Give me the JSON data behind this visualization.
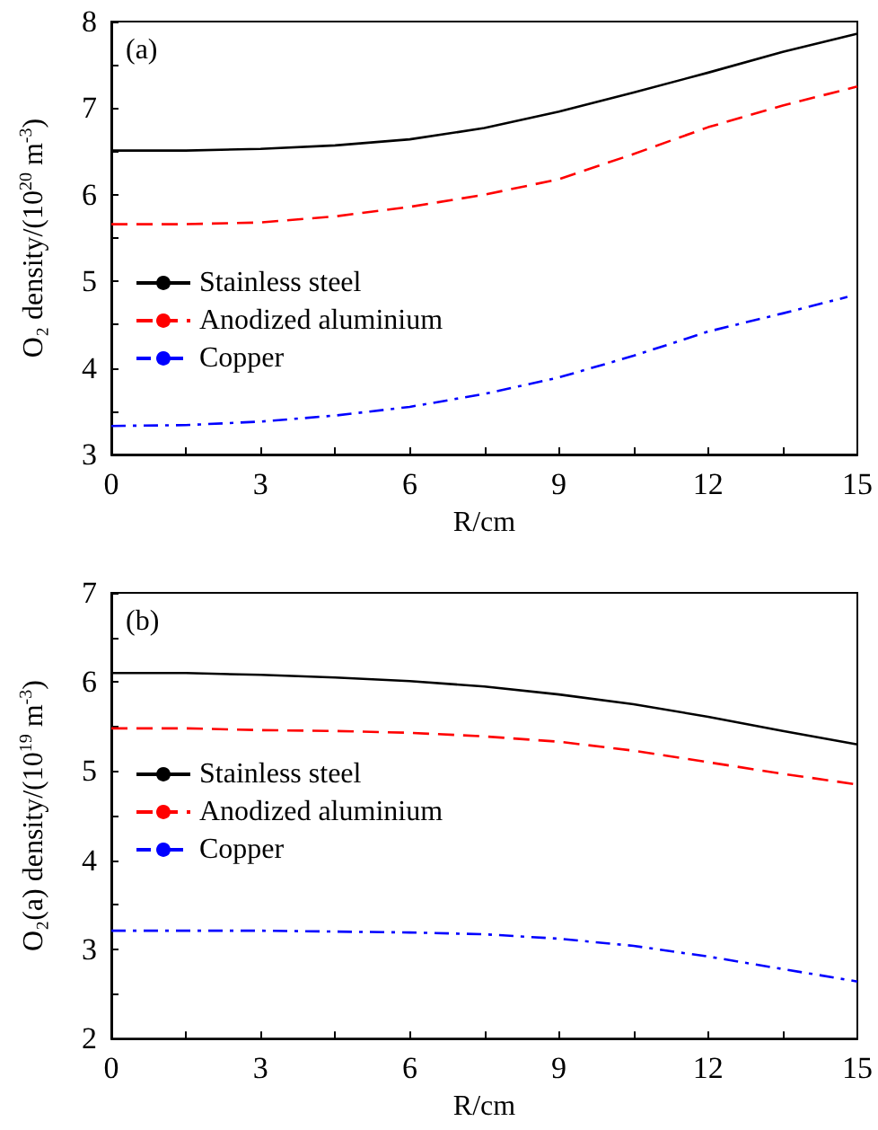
{
  "chart_data": [
    {
      "type": "line",
      "title": "(a)",
      "xlabel": "R/cm",
      "ylabel": "O₂ density/(10$^{20}$ m$^{-3}$)",
      "x": [
        0,
        1.5,
        3,
        4.5,
        6,
        7.5,
        9,
        10.5,
        12,
        13.5,
        15
      ],
      "series": [
        {
          "name": "Stainless steel",
          "color": "#000000",
          "line_style": "solid",
          "values": [
            6.51,
            6.51,
            6.53,
            6.57,
            6.64,
            6.77,
            6.96,
            7.18,
            7.41,
            7.65,
            7.86
          ]
        },
        {
          "name": "Anodized aluminium",
          "color": "#ff0000",
          "line_style": "dashed",
          "values": [
            5.66,
            5.66,
            5.68,
            5.75,
            5.86,
            6.0,
            6.18,
            6.47,
            6.78,
            7.03,
            7.25
          ]
        },
        {
          "name": "Copper",
          "color": "#0000ff",
          "line_style": "dashdot",
          "x": [
            0,
            1.5,
            3,
            4.5,
            6,
            7.5,
            9,
            10.5,
            12,
            13.5,
            14.8
          ],
          "values": [
            3.33,
            3.34,
            3.38,
            3.45,
            3.55,
            3.7,
            3.89,
            4.14,
            4.42,
            4.63,
            4.82
          ]
        }
      ],
      "xlim": [
        0,
        15
      ],
      "xticks": [
        0,
        {
          "value": 1.5,
          "label": null
        },
        3,
        {
          "value": 4.5,
          "label": null
        },
        6,
        {
          "value": 7.5,
          "label": null
        },
        9,
        {
          "value": 10.5,
          "label": null
        },
        12,
        {
          "value": 13.5,
          "label": null
        },
        15
      ],
      "ylim": [
        3,
        8
      ],
      "yticks": [
        3,
        {
          "value": 3.5,
          "label": null
        },
        4,
        {
          "value": 4.5,
          "label": null
        },
        5,
        {
          "value": 5.5,
          "label": null
        },
        6,
        {
          "value": 6.5,
          "label": null
        },
        7,
        {
          "value": 7.5,
          "label": null
        },
        8
      ],
      "grid": false,
      "legend": "bottom left",
      "marker": "none"
    },
    {
      "type": "line",
      "title": "(b)",
      "xlabel": "R/cm",
      "ylabel": "O₂(a) density/(10$^{19}$ m$^{-3}$)",
      "x": [
        0,
        1.5,
        3,
        4.5,
        6,
        7.5,
        9,
        10.5,
        12,
        13.5,
        15
      ],
      "series": [
        {
          "name": "Stainless steel",
          "color": "#000000",
          "line_style": "solid",
          "values": [
            6.1,
            6.1,
            6.08,
            6.05,
            6.01,
            5.95,
            5.86,
            5.75,
            5.61,
            5.45,
            5.3
          ]
        },
        {
          "name": "Anodized aluminium",
          "color": "#ff0000",
          "line_style": "dashed",
          "values": [
            5.48,
            5.48,
            5.46,
            5.45,
            5.43,
            5.39,
            5.33,
            5.23,
            5.1,
            4.97,
            4.85
          ]
        },
        {
          "name": "Copper",
          "color": "#0000ff",
          "line_style": "dashdot",
          "values": [
            3.21,
            3.21,
            3.21,
            3.2,
            3.19,
            3.17,
            3.12,
            3.04,
            2.92,
            2.78,
            2.64
          ]
        }
      ],
      "xlim": [
        0,
        15
      ],
      "xticks": [
        0,
        {
          "value": 1.5,
          "label": null
        },
        3,
        {
          "value": 4.5,
          "label": null
        },
        6,
        {
          "value": 7.5,
          "label": null
        },
        9,
        {
          "value": 10.5,
          "label": null
        },
        12,
        {
          "value": 13.5,
          "label": null
        },
        15
      ],
      "ylim": [
        2,
        7
      ],
      "yticks": [
        2,
        {
          "value": 2.5,
          "label": null
        },
        3,
        {
          "value": 3.5,
          "label": null
        },
        4,
        {
          "value": 4.5,
          "label": null
        },
        5,
        {
          "value": 5.5,
          "label": null
        },
        6,
        {
          "value": 6.5,
          "label": null
        },
        7
      ],
      "grid": false,
      "legend": "left",
      "marker": "none"
    }
  ]
}
